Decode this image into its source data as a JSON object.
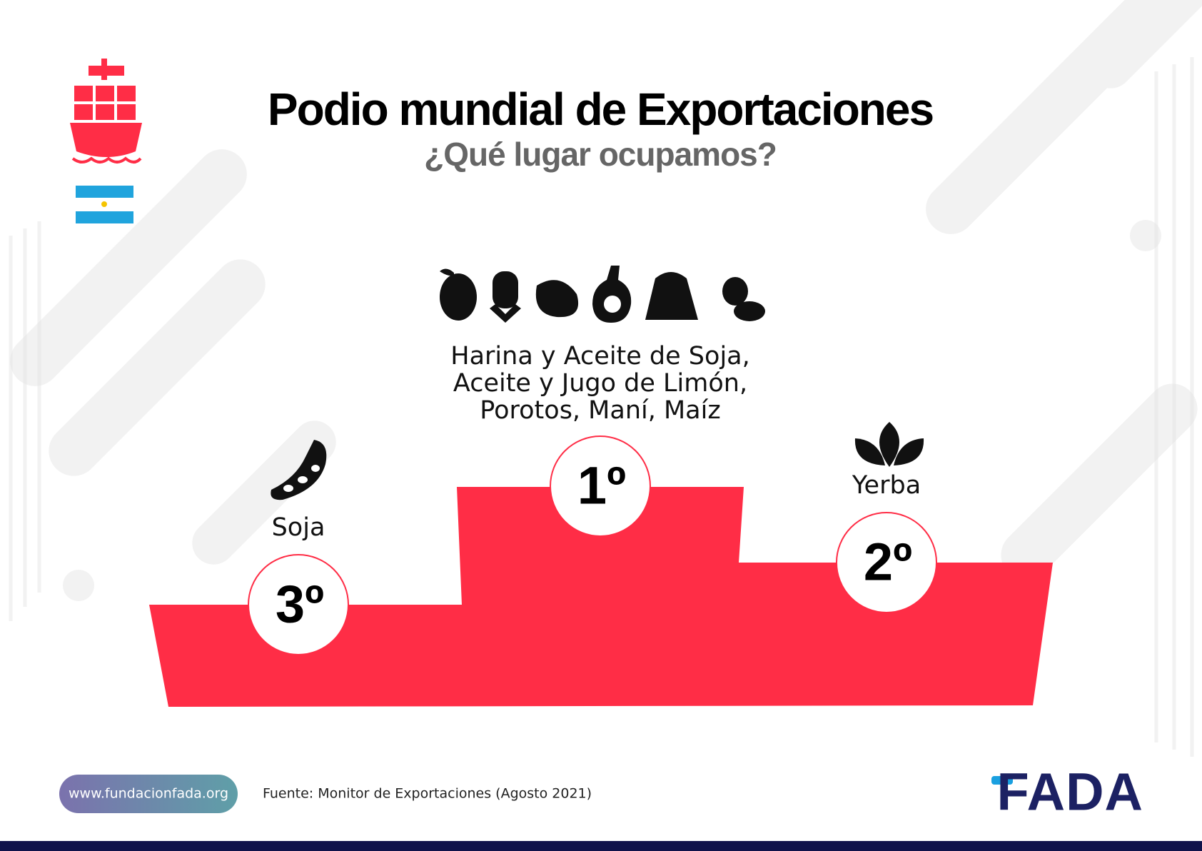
{
  "header": {
    "title": "Podio mundial de Exportaciones",
    "subtitle": "¿Qué lugar ocupamos?"
  },
  "podium": [
    {
      "place": "1º",
      "products": [
        "Harina y Aceite de Soja,",
        "Aceite y Jugo de Limón,",
        "Porotos, Maní, Maíz"
      ]
    },
    {
      "place": "2º",
      "products": [
        "Yerba"
      ]
    },
    {
      "place": "3º",
      "products": [
        "Soja"
      ]
    }
  ],
  "footer": {
    "website": "www.fundacionfada.org",
    "source": "Fuente: Monitor de Exportaciones (Agosto 2021)",
    "logo": "FADA"
  }
}
